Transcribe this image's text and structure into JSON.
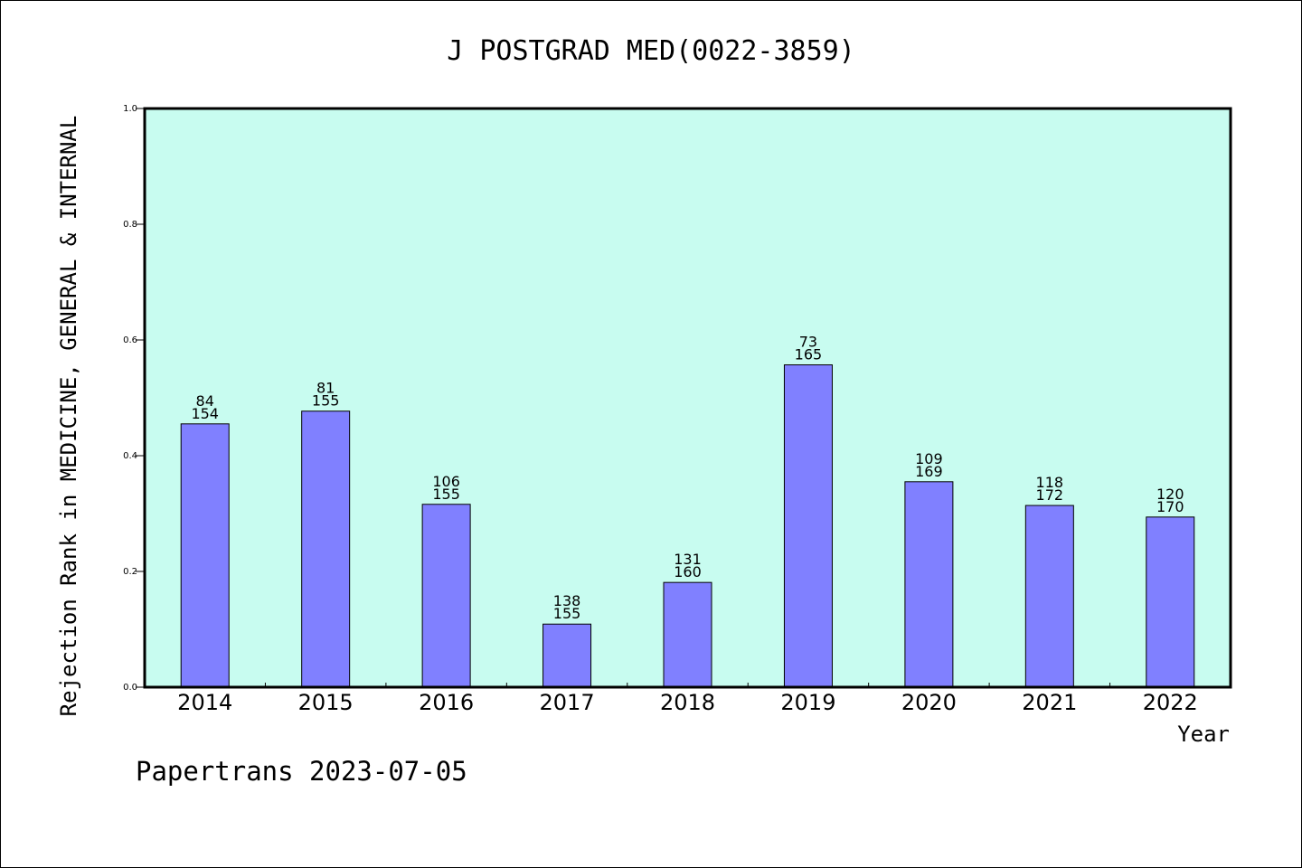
{
  "chart_data": {
    "type": "bar",
    "title": "J POSTGRAD MED(0022-3859)",
    "ylabel": "Rejection Rank in MEDICINE, GENERAL & INTERNAL",
    "xlabel": "Year",
    "ylim": [
      0,
      1.0
    ],
    "yticks": [
      "0.0",
      "0.2",
      "0.4",
      "0.6",
      "0.8",
      "1.0"
    ],
    "categories": [
      "2014",
      "2015",
      "2016",
      "2017",
      "2018",
      "2019",
      "2020",
      "2021",
      "2022"
    ],
    "values": [
      0.455,
      0.477,
      0.316,
      0.109,
      0.181,
      0.557,
      0.355,
      0.314,
      0.294
    ],
    "bar_labels_top": [
      "84",
      "81",
      "106",
      "138",
      "131",
      "73",
      "109",
      "118",
      "120"
    ],
    "bar_labels_bottom": [
      "154",
      "155",
      "155",
      "155",
      "160",
      "165",
      "169",
      "172",
      "170"
    ],
    "grid": false,
    "colors": {
      "bar": "#8080ff",
      "plot_background": "#c8fcf0",
      "axis": "#000000"
    }
  },
  "footer": {
    "text": "Papertrans 2023-07-05"
  }
}
